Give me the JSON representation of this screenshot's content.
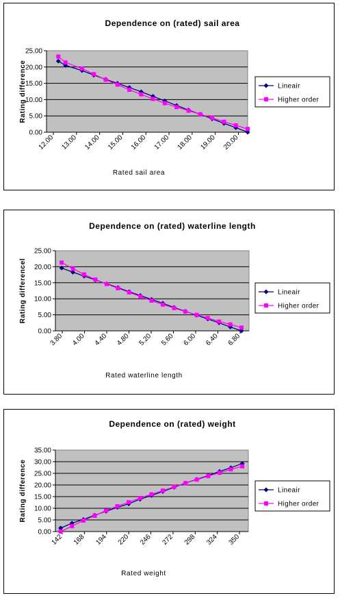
{
  "colors": {
    "plot_bg": "#c0c0c0",
    "lineair": "#000080",
    "higher_order": "#ff00ff",
    "grid": "#000000"
  },
  "chart_data": [
    {
      "type": "line",
      "title": "Dependence on (rated) sail area",
      "xlabel": "Rated sail area",
      "ylabel": "Rating difference",
      "ylim": [
        0,
        25
      ],
      "yticks": [
        "0.00",
        "5.00",
        "10.00",
        "15.00",
        "20.00",
        "25.00"
      ],
      "xlim": [
        12,
        20.5
      ],
      "xticks": [
        "12.00",
        "13.00",
        "14.00",
        "15.00",
        "16.00",
        "17.00",
        "18.00",
        "19.00",
        "20.00"
      ],
      "grid": true,
      "legend_position": "right",
      "x": [
        12.5,
        12.8,
        13.5,
        14.0,
        14.5,
        15.0,
        15.5,
        16.0,
        16.5,
        17.0,
        17.5,
        18.0,
        18.5,
        19.0,
        19.5,
        20.0,
        20.5
      ],
      "series": [
        {
          "name": "Lineair",
          "values": [
            21.8,
            20.5,
            18.9,
            17.5,
            16.2,
            15.0,
            13.7,
            12.4,
            11.0,
            9.6,
            8.2,
            6.8,
            5.5,
            4.1,
            2.7,
            1.4,
            0.0
          ]
        },
        {
          "name": "Higher order",
          "values": [
            23.2,
            21.4,
            19.5,
            17.8,
            16.1,
            14.6,
            13.0,
            11.6,
            10.2,
            8.9,
            7.7,
            6.6,
            5.5,
            4.4,
            3.2,
            2.1,
            1.0
          ]
        }
      ]
    },
    {
      "type": "line",
      "title": "Dependence on (rated) waterline length",
      "xlabel": "Rated waterline length",
      "ylabel": "Rating differencel",
      "ylim": [
        0,
        25
      ],
      "yticks": [
        "0.00",
        "5.00",
        "10.00",
        "15.00",
        "20.00",
        "25.00"
      ],
      "xlim": [
        3.8,
        6.9
      ],
      "xticks": [
        "3.80",
        "4.00",
        "4.40",
        "4.80",
        "5.20",
        "5.60",
        "6.00",
        "6.40",
        "6.80"
      ],
      "grid": true,
      "legend_position": "right",
      "x": [
        3.9,
        4.08,
        4.26,
        4.44,
        4.62,
        4.8,
        4.98,
        5.16,
        5.34,
        5.52,
        5.7,
        5.88,
        6.06,
        6.24,
        6.42,
        6.6,
        6.78
      ],
      "series": [
        {
          "name": "Lineair",
          "values": [
            19.6,
            18.3,
            17.1,
            15.9,
            14.7,
            13.5,
            12.2,
            11.0,
            9.8,
            8.6,
            7.3,
            6.1,
            4.9,
            3.7,
            2.5,
            1.2,
            0.0
          ]
        },
        {
          "name": "Higher order",
          "values": [
            21.3,
            19.4,
            17.6,
            16.0,
            14.6,
            13.3,
            12.0,
            10.7,
            9.4,
            8.2,
            7.1,
            6.0,
            5.0,
            4.0,
            2.9,
            2.0,
            1.0
          ]
        }
      ]
    },
    {
      "type": "line",
      "title": "Dependence on (rated) weight",
      "xlabel": "Rated weight",
      "ylabel": "Rating difference",
      "ylim": [
        0,
        35
      ],
      "yticks": [
        "0.00",
        "5.00",
        "10.00",
        "15.00",
        "20.00",
        "25.00",
        "30.00",
        "35.00"
      ],
      "xlim": [
        142,
        363
      ],
      "xticks": [
        "142",
        "168",
        "194",
        "220",
        "246",
        "272",
        "298",
        "324",
        "350"
      ],
      "grid": true,
      "legend_position": "right",
      "x": [
        148,
        161,
        174,
        187,
        200,
        213,
        226,
        239,
        252,
        265,
        278,
        291,
        304,
        317,
        330,
        343,
        356
      ],
      "series": [
        {
          "name": "Lineair",
          "values": [
            1.5,
            3.6,
            5.2,
            7.0,
            8.7,
            10.4,
            11.9,
            13.9,
            15.5,
            17.2,
            19.0,
            20.8,
            22.4,
            24.0,
            25.8,
            27.4,
            29.2
          ]
        },
        {
          "name": "Higher order",
          "values": [
            0.0,
            2.3,
            4.7,
            6.8,
            9.0,
            10.9,
            12.6,
            14.4,
            16.0,
            17.6,
            19.2,
            20.8,
            22.3,
            23.8,
            25.2,
            26.7,
            28.0
          ]
        }
      ]
    }
  ]
}
